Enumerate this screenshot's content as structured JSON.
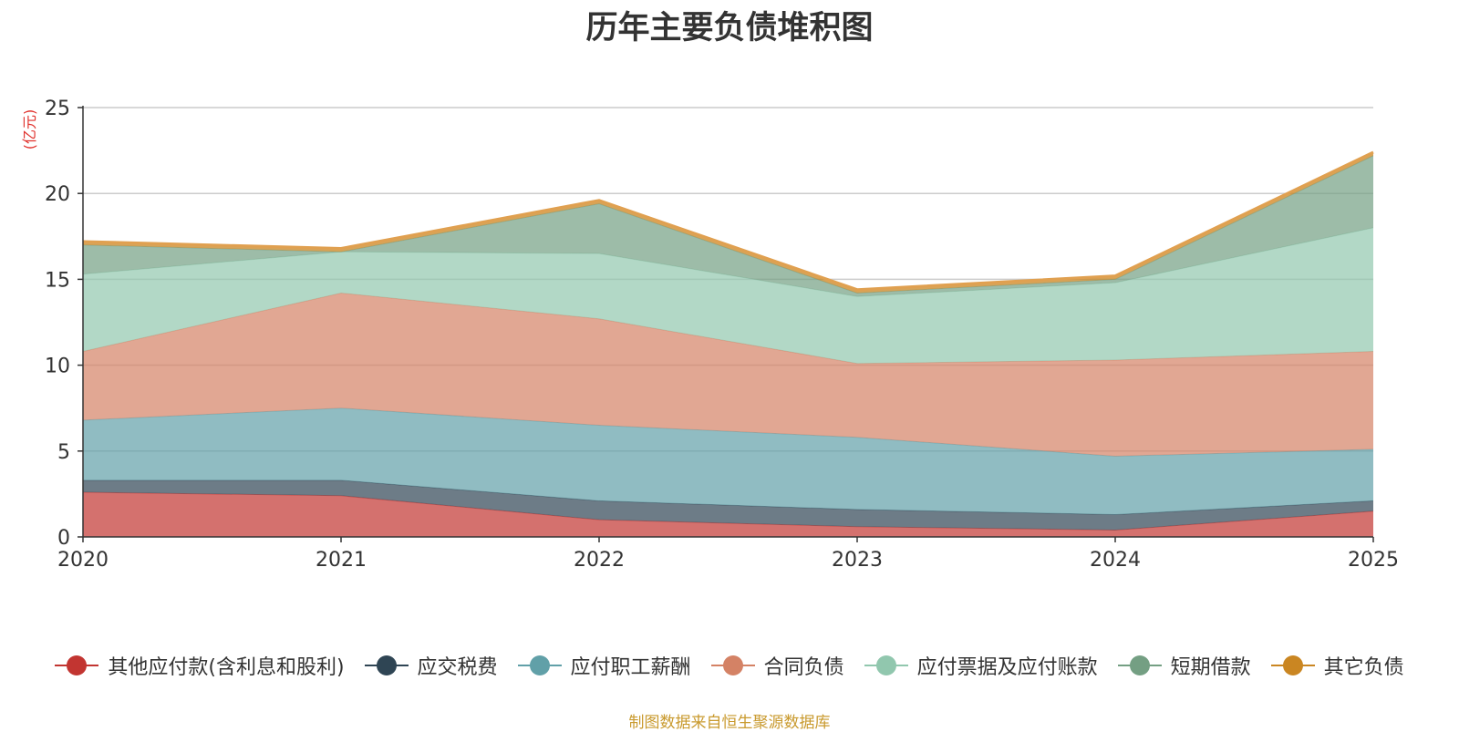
{
  "chart_data": {
    "type": "area",
    "stacked": true,
    "title": "历年主要负债堆积图",
    "ylabel": "(亿元)",
    "xlabel": "",
    "categories": [
      "2020",
      "2021",
      "2022",
      "2023",
      "2024",
      "2025"
    ],
    "ylim": [
      0,
      25
    ],
    "yticks": [
      0,
      5,
      10,
      15,
      20,
      25
    ],
    "grid": true,
    "legend_position": "bottom",
    "series": [
      {
        "name": "其他应付款(含利息和股利)",
        "color": "#c23531",
        "values": [
          2.6,
          2.4,
          1.0,
          0.6,
          0.4,
          1.5
        ]
      },
      {
        "name": "应交税费",
        "color": "#2f4554",
        "values": [
          0.7,
          0.9,
          1.1,
          1.0,
          0.9,
          0.6
        ]
      },
      {
        "name": "应付职工薪酬",
        "color": "#61a0a8",
        "values": [
          3.5,
          4.2,
          4.4,
          4.2,
          3.4,
          3.0
        ]
      },
      {
        "name": "合同负债",
        "color": "#d48265",
        "values": [
          4.0,
          6.7,
          6.2,
          4.3,
          5.6,
          5.7
        ]
      },
      {
        "name": "应付票据及应付账款",
        "color": "#91c7ae",
        "values": [
          4.5,
          2.4,
          3.8,
          3.9,
          4.5,
          7.2
        ]
      },
      {
        "name": "短期借款",
        "color": "#749f83",
        "values": [
          1.7,
          0.0,
          2.9,
          0.2,
          0.2,
          4.2
        ]
      },
      {
        "name": "其它负债",
        "color": "#ca8622",
        "values": [
          0.2,
          0.2,
          0.2,
          0.2,
          0.2,
          0.2
        ]
      }
    ]
  },
  "source_note": "制图数据来自恒生聚源数据库",
  "colors": {
    "title": "#333333",
    "source_note": "#c99a2e",
    "ylabel": "#e0312c",
    "grid": "#cccccc",
    "axis": "#333333"
  }
}
